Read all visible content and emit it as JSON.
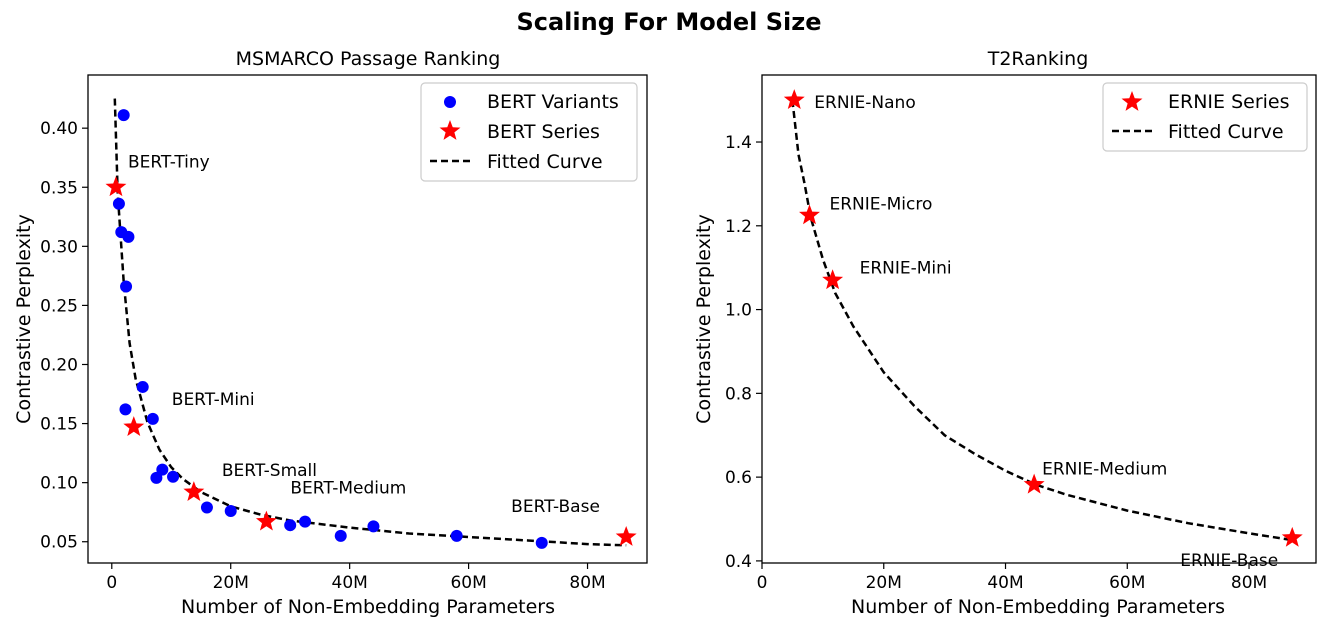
{
  "figure": {
    "title": "Scaling For Model Size"
  },
  "colors": {
    "bert_variant": "#0000ff",
    "series_star": "#ff0000",
    "fitted_curve": "#000000"
  },
  "chart_data": [
    {
      "type": "scatter",
      "title": "MSMARCO Passage Ranking",
      "xlabel": "Number of Non-Embedding Parameters",
      "ylabel": "Contrastive Perplexity",
      "xlim": [
        -4000000,
        90000000
      ],
      "ylim": [
        0.032,
        0.445
      ],
      "xticks": [
        {
          "v": 0,
          "label": "0"
        },
        {
          "v": 20000000,
          "label": "20M"
        },
        {
          "v": 40000000,
          "label": "40M"
        },
        {
          "v": 60000000,
          "label": "60M"
        },
        {
          "v": 80000000,
          "label": "80M"
        }
      ],
      "yticks": [
        {
          "v": 0.05,
          "label": "0.05"
        },
        {
          "v": 0.1,
          "label": "0.10"
        },
        {
          "v": 0.15,
          "label": "0.15"
        },
        {
          "v": 0.2,
          "label": "0.20"
        },
        {
          "v": 0.25,
          "label": "0.25"
        },
        {
          "v": 0.3,
          "label": "0.30"
        },
        {
          "v": 0.35,
          "label": "0.35"
        },
        {
          "v": 0.4,
          "label": "0.40"
        }
      ],
      "legend": {
        "position": "top-right",
        "entries": [
          "BERT Variants",
          "BERT Series",
          "Fitted Curve"
        ]
      },
      "series": [
        {
          "name": "BERT Variants",
          "marker": "circle",
          "points": [
            {
              "x": 2000000,
              "y": 0.411
            },
            {
              "x": 1200000,
              "y": 0.336
            },
            {
              "x": 1600000,
              "y": 0.312
            },
            {
              "x": 2800000,
              "y": 0.308
            },
            {
              "x": 2400000,
              "y": 0.266
            },
            {
              "x": 5200000,
              "y": 0.181
            },
            {
              "x": 2300000,
              "y": 0.162
            },
            {
              "x": 6900000,
              "y": 0.154
            },
            {
              "x": 8500000,
              "y": 0.111
            },
            {
              "x": 7500000,
              "y": 0.104
            },
            {
              "x": 10300000,
              "y": 0.105
            },
            {
              "x": 16000000,
              "y": 0.079
            },
            {
              "x": 20000000,
              "y": 0.076
            },
            {
              "x": 30000000,
              "y": 0.064
            },
            {
              "x": 32500000,
              "y": 0.067
            },
            {
              "x": 44000000,
              "y": 0.063
            },
            {
              "x": 38500000,
              "y": 0.055
            },
            {
              "x": 58000000,
              "y": 0.055
            },
            {
              "x": 72300000,
              "y": 0.049
            }
          ]
        },
        {
          "name": "BERT Series",
          "marker": "star",
          "points": [
            {
              "x": 700000,
              "y": 0.35,
              "label": "BERT-Tiny"
            },
            {
              "x": 3700000,
              "y": 0.147,
              "label": "BERT-Mini"
            },
            {
              "x": 13800000,
              "y": 0.092,
              "label": "BERT-Small"
            },
            {
              "x": 26000000,
              "y": 0.067,
              "label": "BERT-Medium"
            },
            {
              "x": 86500000,
              "y": 0.054,
              "label": "BERT-Base"
            }
          ]
        },
        {
          "name": "Fitted Curve",
          "line": "dashed",
          "points": [
            {
              "x": 500000,
              "y": 0.425
            },
            {
              "x": 1000000,
              "y": 0.345
            },
            {
              "x": 2000000,
              "y": 0.27
            },
            {
              "x": 3000000,
              "y": 0.218
            },
            {
              "x": 4000000,
              "y": 0.188
            },
            {
              "x": 6000000,
              "y": 0.151
            },
            {
              "x": 8000000,
              "y": 0.128
            },
            {
              "x": 10000000,
              "y": 0.113
            },
            {
              "x": 12000000,
              "y": 0.103
            },
            {
              "x": 15000000,
              "y": 0.092
            },
            {
              "x": 20000000,
              "y": 0.08
            },
            {
              "x": 25000000,
              "y": 0.073
            },
            {
              "x": 30000000,
              "y": 0.068
            },
            {
              "x": 40000000,
              "y": 0.062
            },
            {
              "x": 50000000,
              "y": 0.057
            },
            {
              "x": 60000000,
              "y": 0.054
            },
            {
              "x": 70000000,
              "y": 0.051
            },
            {
              "x": 80000000,
              "y": 0.048
            },
            {
              "x": 86500000,
              "y": 0.047
            }
          ]
        }
      ]
    },
    {
      "type": "scatter",
      "title": "T2Ranking",
      "xlabel": "Number of Non-Embedding Parameters",
      "ylabel": "Contrastive Perplexity",
      "xlim": [
        0,
        91000000
      ],
      "ylim": [
        0.395,
        1.56
      ],
      "xticks": [
        {
          "v": 0,
          "label": "0"
        },
        {
          "v": 20000000,
          "label": "20M"
        },
        {
          "v": 40000000,
          "label": "40M"
        },
        {
          "v": 60000000,
          "label": "60M"
        },
        {
          "v": 80000000,
          "label": "80M"
        }
      ],
      "yticks": [
        {
          "v": 0.4,
          "label": "0.4"
        },
        {
          "v": 0.6,
          "label": "0.6"
        },
        {
          "v": 0.8,
          "label": "0.8"
        },
        {
          "v": 1.0,
          "label": "1.0"
        },
        {
          "v": 1.2,
          "label": "1.2"
        },
        {
          "v": 1.4,
          "label": "1.4"
        }
      ],
      "legend": {
        "position": "top-right",
        "entries": [
          "ERNIE Series",
          "Fitted Curve"
        ]
      },
      "series": [
        {
          "name": "ERNIE Series",
          "marker": "star",
          "points": [
            {
              "x": 5300000,
              "y": 1.5,
              "label": "ERNIE-Nano"
            },
            {
              "x": 7800000,
              "y": 1.225,
              "label": "ERNIE-Micro"
            },
            {
              "x": 11600000,
              "y": 1.07,
              "label": "ERNIE-Mini"
            },
            {
              "x": 44700000,
              "y": 0.582,
              "label": "ERNIE-Medium"
            },
            {
              "x": 87100000,
              "y": 0.455,
              "label": "ERNIE-Base"
            }
          ]
        },
        {
          "name": "Fitted Curve",
          "line": "dashed",
          "points": [
            {
              "x": 5000000,
              "y": 1.5
            },
            {
              "x": 6000000,
              "y": 1.37
            },
            {
              "x": 7000000,
              "y": 1.3
            },
            {
              "x": 8000000,
              "y": 1.22
            },
            {
              "x": 10000000,
              "y": 1.12
            },
            {
              "x": 12000000,
              "y": 1.04
            },
            {
              "x": 15000000,
              "y": 0.96
            },
            {
              "x": 20000000,
              "y": 0.85
            },
            {
              "x": 25000000,
              "y": 0.77
            },
            {
              "x": 30000000,
              "y": 0.7
            },
            {
              "x": 35000000,
              "y": 0.655
            },
            {
              "x": 40000000,
              "y": 0.615
            },
            {
              "x": 45000000,
              "y": 0.582
            },
            {
              "x": 50000000,
              "y": 0.558
            },
            {
              "x": 60000000,
              "y": 0.52
            },
            {
              "x": 70000000,
              "y": 0.49
            },
            {
              "x": 80000000,
              "y": 0.466
            },
            {
              "x": 87000000,
              "y": 0.45
            }
          ]
        }
      ]
    }
  ]
}
